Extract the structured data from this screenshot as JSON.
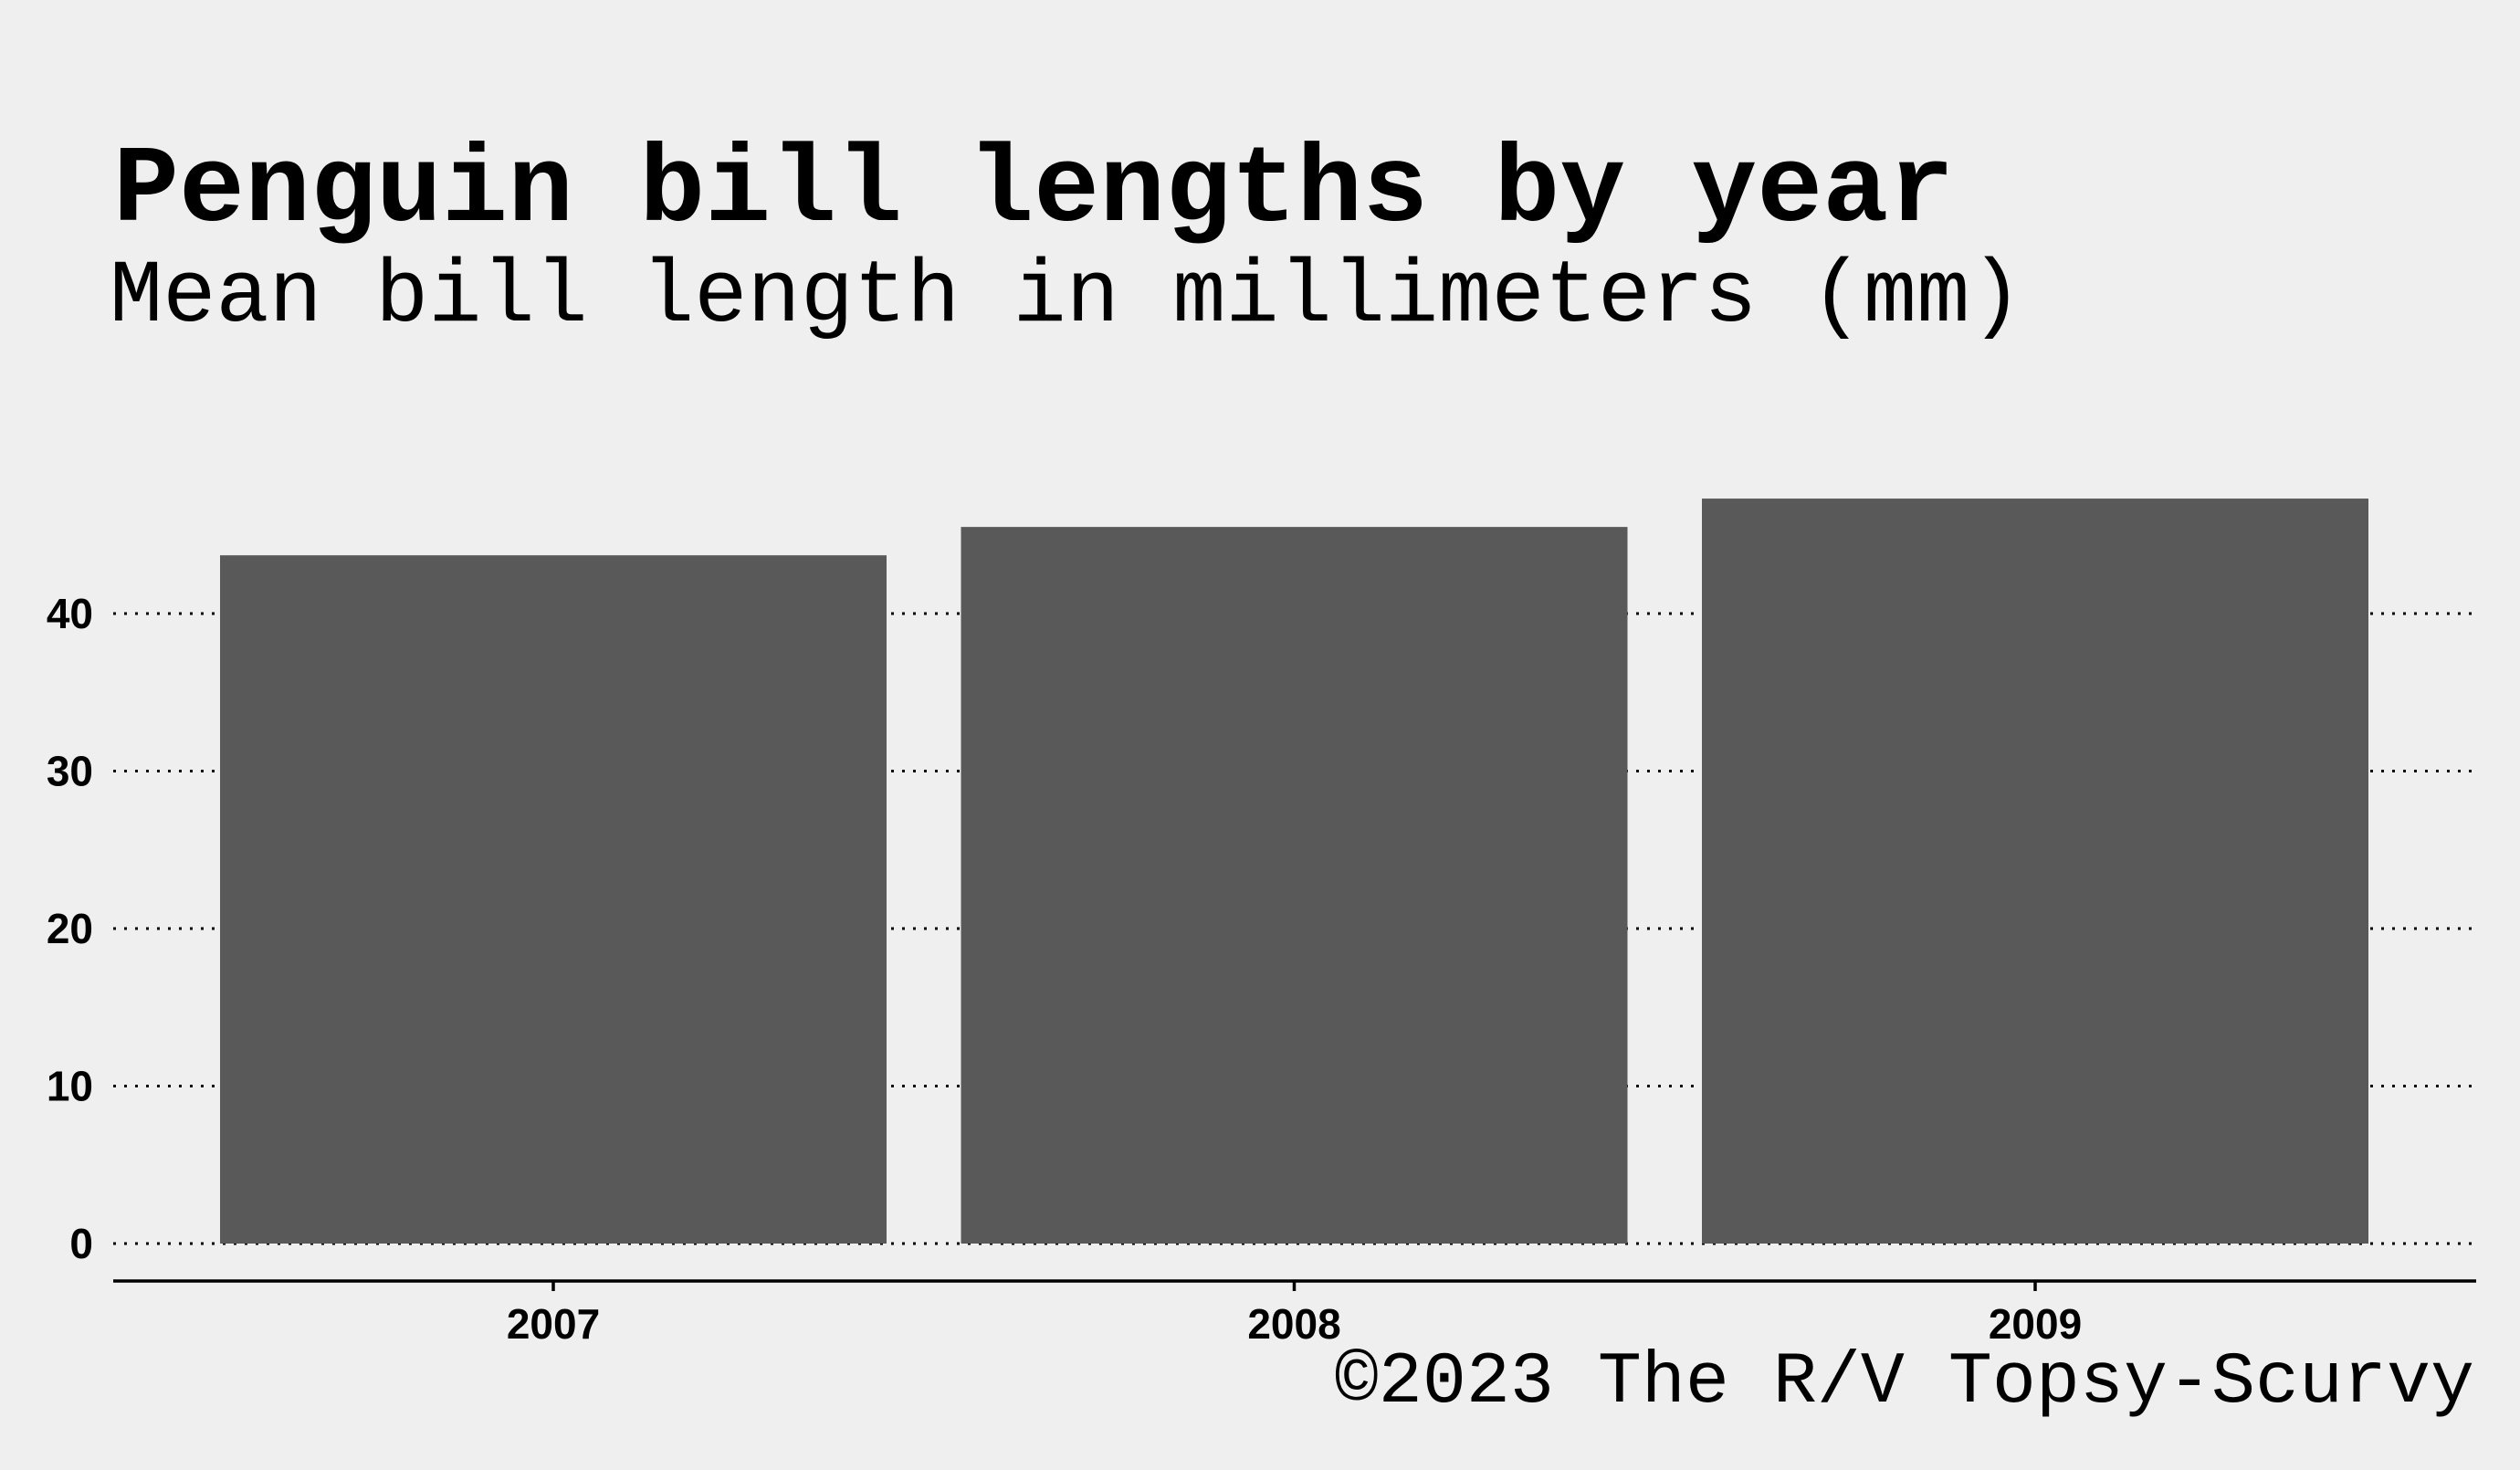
{
  "chart_data": {
    "type": "bar",
    "title": "Penguin bill lengths by year",
    "subtitle": "Mean bill length in millimeters (mm)",
    "caption": "©2023 The R/V Topsy-Scurvy",
    "categories": [
      "2007",
      "2008",
      "2009"
    ],
    "values": [
      43.7,
      45.5,
      47.3
    ],
    "xlabel": "",
    "ylabel": "",
    "ylim": [
      0,
      48
    ],
    "yticks": [
      0,
      10,
      20,
      30,
      40
    ],
    "grid": "horizontal dotted",
    "colors": {
      "background": "#efefef",
      "bar": "#595959",
      "text": "#000000"
    }
  }
}
